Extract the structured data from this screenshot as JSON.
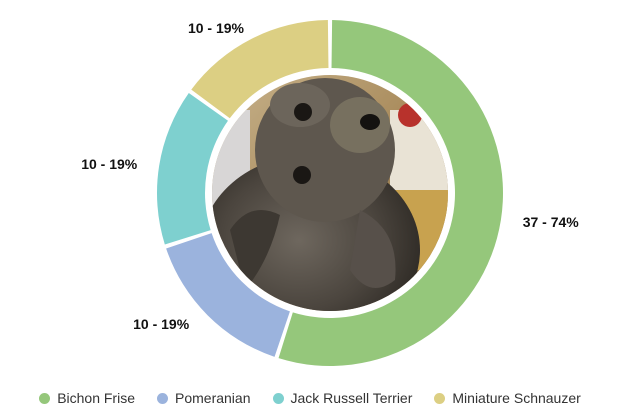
{
  "chart_data": {
    "type": "pie",
    "donut": true,
    "categories": [
      "Bichon Frise",
      "Pomeranian",
      "Jack Russell Terrier",
      "Miniature Schnauzer"
    ],
    "values": [
      55,
      15,
      15,
      15
    ],
    "slice_labels": [
      "37 - 74%",
      "10 - 19%",
      "10 - 19%",
      "10 - 19%"
    ],
    "colors": [
      "#95c77b",
      "#9bb3dd",
      "#7ed0cf",
      "#dccf83"
    ],
    "center_image": "dog-photo",
    "legend_position": "bottom"
  }
}
